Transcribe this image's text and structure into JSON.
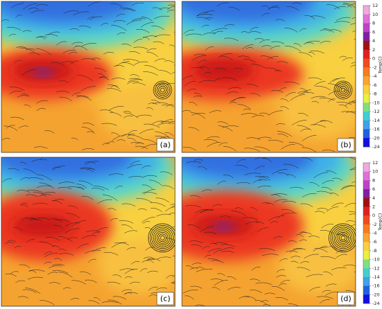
{
  "panels": [
    {
      "label": "(a)"
    },
    {
      "label": "(b)"
    },
    {
      "label": "(c)"
    },
    {
      "label": "(d)"
    }
  ],
  "colorbars": [
    {
      "label": "Temp(C)",
      "ticks": [
        12,
        10,
        8,
        6,
        4,
        2,
        0,
        -2,
        -4,
        -6,
        -8,
        -10,
        -12,
        -14,
        -16,
        -20,
        -24
      ]
    },
    {
      "label": "Temp(C)",
      "ticks": [
        12,
        10,
        8,
        6,
        4,
        2,
        0,
        -2,
        -4,
        -6,
        -8,
        -10,
        -12,
        -14,
        -16,
        -20,
        -24
      ]
    }
  ],
  "colors": [
    "#f0a8e0",
    "#e070d8",
    "#c040c8",
    "#8020a0",
    "#a01010",
    "#e02020",
    "#f04a20",
    "#f87a20",
    "#f8a430",
    "#f8d040",
    "#e8f040",
    "#80e080",
    "#40d0d0",
    "#40a0e8",
    "#2060e0",
    "#1010e0"
  ]
}
